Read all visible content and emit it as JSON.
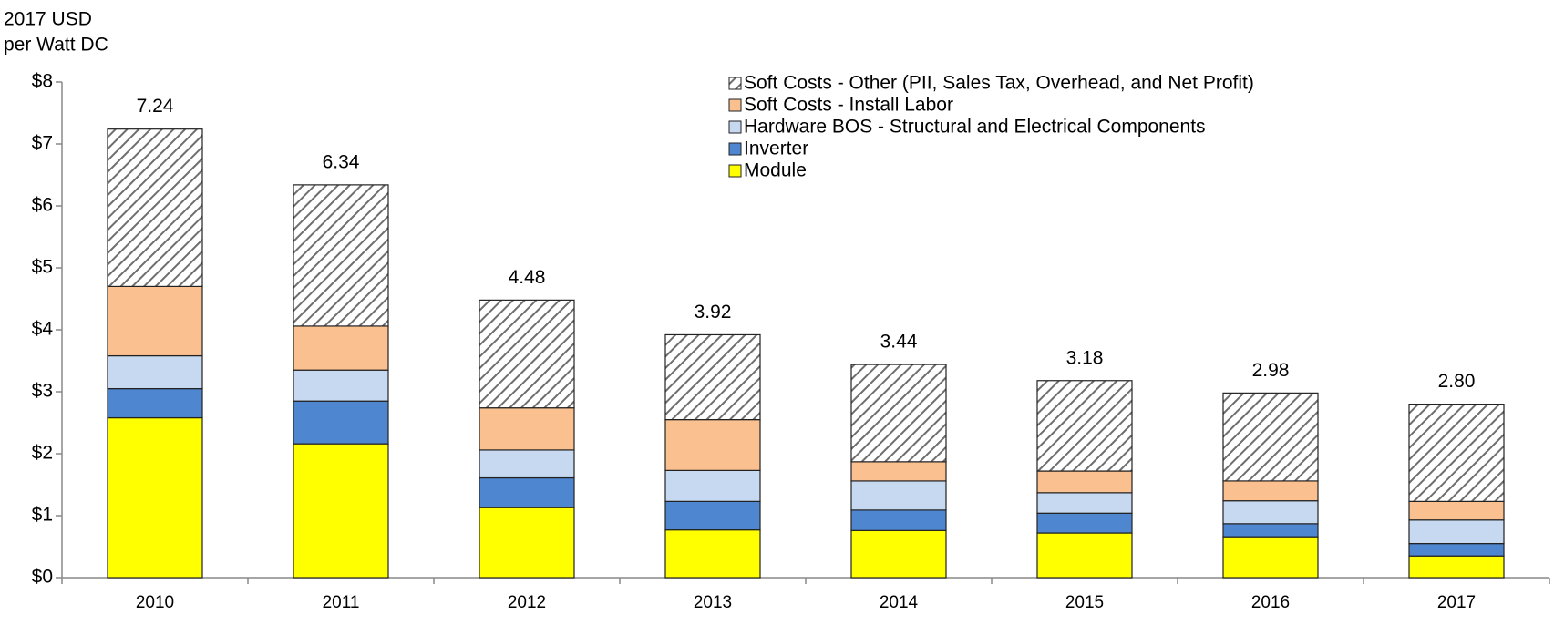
{
  "chart_data": {
    "type": "stacked_bar",
    "ylabel": [
      "2017 USD",
      "per Watt DC"
    ],
    "categories": [
      "2010",
      "2011",
      "2012",
      "2013",
      "2014",
      "2015",
      "2016",
      "2017"
    ],
    "series": [
      {
        "name": "Module",
        "color": "#ffff00",
        "values": [
          2.58,
          2.16,
          1.13,
          0.77,
          0.76,
          0.72,
          0.66,
          0.35
        ]
      },
      {
        "name": "Inverter",
        "color": "#4f86d0",
        "values": [
          0.47,
          0.69,
          0.48,
          0.46,
          0.33,
          0.32,
          0.21,
          0.2
        ]
      },
      {
        "name": "Hardware BOS - Structural and Electrical Components",
        "color": "#c6d9f1",
        "values": [
          0.53,
          0.5,
          0.45,
          0.5,
          0.47,
          0.33,
          0.37,
          0.38
        ]
      },
      {
        "name": "Soft Costs - Install Labor",
        "color": "#fac090",
        "values": [
          1.12,
          0.71,
          0.68,
          0.82,
          0.31,
          0.35,
          0.32,
          0.3
        ]
      },
      {
        "name": "Soft Costs - Other (PII, Sales Tax, Overhead, and Net Profit)",
        "color": "#6e6e6e",
        "pattern": "hatch",
        "values": [
          2.54,
          2.28,
          1.74,
          1.37,
          1.57,
          1.46,
          1.42,
          1.57
        ]
      }
    ],
    "totals": [
      7.24,
      6.34,
      4.48,
      3.92,
      3.44,
      3.18,
      2.98,
      2.8
    ],
    "total_labels": [
      "7.24",
      "6.34",
      "4.48",
      "3.92",
      "3.44",
      "3.18",
      "2.98",
      "2.80"
    ],
    "ylim": [
      0,
      8
    ],
    "yticks": [
      {
        "value": 0,
        "label": "$0"
      },
      {
        "value": 1,
        "label": "$1"
      },
      {
        "value": 2,
        "label": "$2"
      },
      {
        "value": 3,
        "label": "$3"
      },
      {
        "value": 4,
        "label": "$4"
      },
      {
        "value": 5,
        "label": "$5"
      },
      {
        "value": 6,
        "label": "$6"
      },
      {
        "value": 7,
        "label": "$7"
      },
      {
        "value": 8,
        "label": "$8"
      }
    ],
    "grid": false,
    "legend": "top-center"
  }
}
